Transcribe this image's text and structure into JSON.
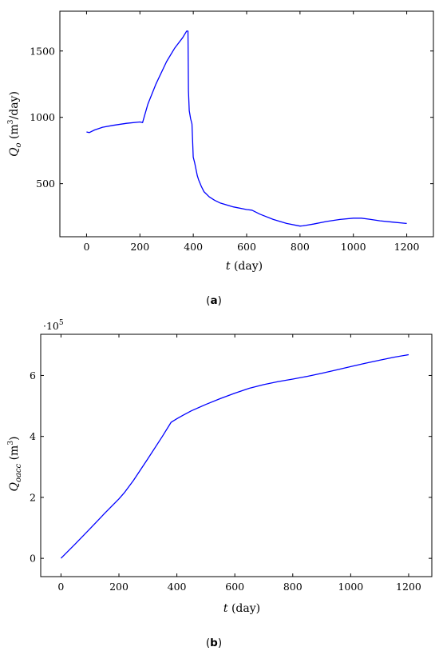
{
  "chart_data": [
    {
      "type": "line",
      "panel_label": "a",
      "xlabel_var": "t",
      "xlabel_unit": "(day)",
      "ylabel_var": "Q",
      "ylabel_sub": "o",
      "ylabel_unit_pre": "(m",
      "ylabel_unit_sup": "3",
      "ylabel_unit_post": "/day)",
      "xlim": [
        -100,
        1300
      ],
      "ylim": [
        100,
        1800
      ],
      "xticks": [
        0,
        200,
        400,
        600,
        800,
        1000,
        1200
      ],
      "yticks": [
        500,
        1000,
        1500
      ],
      "xtick_labels": [
        "0",
        "200",
        "400",
        "600",
        "800",
        "1000",
        "1200"
      ],
      "ytick_labels": [
        "500",
        "1000",
        "1500"
      ],
      "series_color": "#0000ff",
      "x": [
        0,
        10,
        30,
        60,
        100,
        150,
        200,
        210,
        230,
        260,
        300,
        330,
        360,
        375,
        380,
        382,
        385,
        390,
        395,
        400,
        405,
        410,
        415,
        420,
        430,
        440,
        460,
        480,
        500,
        550,
        600,
        620,
        650,
        700,
        750,
        800,
        810,
        850,
        900,
        950,
        1000,
        1030,
        1060,
        1100,
        1150,
        1200
      ],
      "y": [
        890,
        885,
        905,
        925,
        940,
        955,
        965,
        960,
        1100,
        1250,
        1420,
        1520,
        1600,
        1650,
        1650,
        1200,
        1050,
        990,
        950,
        700,
        660,
        610,
        560,
        530,
        480,
        440,
        400,
        375,
        355,
        325,
        305,
        300,
        270,
        230,
        200,
        180,
        182,
        195,
        215,
        230,
        240,
        240,
        232,
        220,
        210,
        200
      ]
    },
    {
      "type": "line",
      "panel_label": "b",
      "multiplier": "·10",
      "multiplier_exp": "5",
      "xlabel_var": "t",
      "xlabel_unit": "(day)",
      "ylabel_var": "Q",
      "ylabel_sub": "oacc",
      "ylabel_unit_pre": "(m",
      "ylabel_unit_sup": "3",
      "ylabel_unit_post": ")",
      "xlim": [
        -70,
        1280
      ],
      "ylim": [
        -0.6,
        7.35
      ],
      "xticks": [
        0,
        200,
        400,
        600,
        800,
        1000,
        1200
      ],
      "yticks": [
        0,
        2,
        4,
        6
      ],
      "xtick_labels": [
        "0",
        "200",
        "400",
        "600",
        "800",
        "1000",
        "1200"
      ],
      "ytick_labels": [
        "0",
        "2",
        "4",
        "6"
      ],
      "series_color": "#0000ff",
      "x": [
        0,
        50,
        100,
        150,
        200,
        220,
        250,
        300,
        350,
        380,
        400,
        420,
        450,
        500,
        550,
        600,
        650,
        700,
        750,
        800,
        850,
        900,
        950,
        1000,
        1050,
        1100,
        1150,
        1200
      ],
      "y": [
        0,
        0.48,
        0.97,
        1.47,
        1.95,
        2.17,
        2.55,
        3.27,
        4.0,
        4.46,
        4.58,
        4.69,
        4.84,
        5.05,
        5.24,
        5.42,
        5.58,
        5.7,
        5.8,
        5.88,
        5.97,
        6.07,
        6.18,
        6.29,
        6.4,
        6.5,
        6.6,
        6.68
      ]
    }
  ]
}
